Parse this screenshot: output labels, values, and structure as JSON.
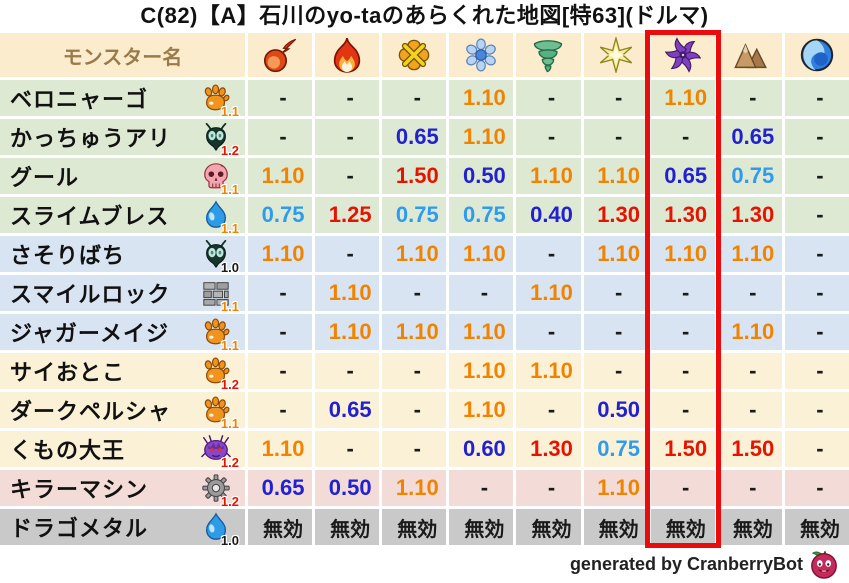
{
  "title": "C(82)【A】石川のyo-taのあらくれた地図[特63](ドルマ)",
  "chart_data": {
    "type": "table",
    "title": "C(82)【A】石川のyo-taのあらくれた地図[特63](ドルマ)",
    "name_column_header": "モンスター名",
    "highlighted_column": "dark",
    "element_columns": [
      {
        "id": "fireball",
        "icon": "fireball-icon"
      },
      {
        "id": "flame",
        "icon": "flame-icon"
      },
      {
        "id": "explosion",
        "icon": "explosion-burst-icon"
      },
      {
        "id": "ice",
        "icon": "ice-crystal-icon"
      },
      {
        "id": "wind",
        "icon": "tornado-icon"
      },
      {
        "id": "light",
        "icon": "light-star-icon"
      },
      {
        "id": "dark",
        "icon": "dark-pinwheel-icon"
      },
      {
        "id": "earth",
        "icon": "mountain-icon"
      },
      {
        "id": "water",
        "icon": "wave-icon"
      }
    ],
    "rows": [
      {
        "name": "ベロニャーゴ",
        "family_icon": "paw-icon",
        "heart_rate": "1.1",
        "rate_style": "up",
        "group": "green",
        "values": [
          "-",
          "-",
          "-",
          "1.10",
          "-",
          "-",
          "1.10",
          "-",
          "-"
        ]
      },
      {
        "name": "かっちゅうアリ",
        "family_icon": "ant-icon",
        "heart_rate": "1.2",
        "rate_style": "strong_up",
        "group": "green",
        "values": [
          "-",
          "-",
          "0.65",
          "1.10",
          "-",
          "-",
          "-",
          "0.65",
          "-"
        ]
      },
      {
        "name": "グール",
        "family_icon": "skull-icon",
        "heart_rate": "1.1",
        "rate_style": "up",
        "group": "green",
        "values": [
          "1.10",
          "-",
          "1.50",
          "0.50",
          "1.10",
          "1.10",
          "0.65",
          "0.75",
          "-"
        ]
      },
      {
        "name": "スライムブレス",
        "family_icon": "slime-icon",
        "heart_rate": "1.1",
        "rate_style": "up",
        "group": "green",
        "values": [
          "0.75",
          "1.25",
          "0.75",
          "0.75",
          "0.40",
          "1.30",
          "1.30",
          "1.30",
          "-"
        ]
      },
      {
        "name": "さそりばち",
        "family_icon": "ant-icon",
        "heart_rate": "1.0",
        "rate_style": "neutral",
        "group": "blue",
        "values": [
          "1.10",
          "-",
          "1.10",
          "1.10",
          "-",
          "1.10",
          "1.10",
          "1.10",
          "-"
        ]
      },
      {
        "name": "スマイルロック",
        "family_icon": "brick-icon",
        "heart_rate": "1.1",
        "rate_style": "up",
        "group": "blue",
        "values": [
          "-",
          "1.10",
          "-",
          "-",
          "1.10",
          "-",
          "-",
          "-",
          "-"
        ]
      },
      {
        "name": "ジャガーメイジ",
        "family_icon": "paw-icon",
        "heart_rate": "1.1",
        "rate_style": "up",
        "group": "blue",
        "values": [
          "-",
          "1.10",
          "1.10",
          "1.10",
          "-",
          "-",
          "-",
          "1.10",
          "-"
        ]
      },
      {
        "name": "サイおとこ",
        "family_icon": "paw-icon",
        "heart_rate": "1.2",
        "rate_style": "strong_up",
        "group": "cream",
        "values": [
          "-",
          "-",
          "-",
          "1.10",
          "1.10",
          "-",
          "-",
          "-",
          "-"
        ]
      },
      {
        "name": "ダークペルシャ",
        "family_icon": "paw-icon",
        "heart_rate": "1.1",
        "rate_style": "up",
        "group": "cream",
        "values": [
          "-",
          "0.65",
          "-",
          "1.10",
          "-",
          "0.50",
          "-",
          "-",
          "-"
        ]
      },
      {
        "name": "くもの大王",
        "family_icon": "spider-icon",
        "heart_rate": "1.2",
        "rate_style": "strong_up",
        "group": "cream",
        "values": [
          "1.10",
          "-",
          "-",
          "0.60",
          "1.30",
          "0.75",
          "1.50",
          "1.50",
          "-"
        ]
      },
      {
        "name": "キラーマシン",
        "family_icon": "gear-icon",
        "heart_rate": "1.2",
        "rate_style": "strong_up",
        "group": "pink",
        "values": [
          "0.65",
          "0.50",
          "1.10",
          "-",
          "-",
          "1.10",
          "-",
          "-",
          "-"
        ]
      },
      {
        "name": "ドラゴメタル",
        "family_icon": "slime-icon",
        "heart_rate": "1.0",
        "rate_style": "neutral",
        "group": "gray",
        "values": [
          "無効",
          "無効",
          "無効",
          "無効",
          "無効",
          "無効",
          "無効",
          "無効",
          "無効"
        ]
      }
    ]
  },
  "footer": {
    "credit": "generated by CranberryBot",
    "icon": "cranberry-icon"
  },
  "style": {
    "highlight_color": "#ea0c0c",
    "header_bg": "#faeccd",
    "header_text": "#9b7a4a",
    "row_colors": {
      "green": "#dee9d3",
      "blue": "#d8e4f1",
      "cream": "#fbf1d6",
      "pink": "#f3dbd8",
      "gray": "#c9c9c9"
    },
    "value_colors": {
      "up": "#f08300",
      "strong_up": "#e51400",
      "down": "#2e9bef",
      "strong_down": "#2121cf",
      "neutral": "#1a1a1a"
    }
  },
  "value_style_map": {
    "-": "neutral",
    "無効": "neutral",
    "1.10": "up",
    "1.25": "strong_up",
    "1.30": "strong_up",
    "1.50": "strong_up",
    "0.75": "down",
    "0.65": "strong_down",
    "0.60": "strong_down",
    "0.50": "strong_down",
    "0.40": "strong_down"
  }
}
